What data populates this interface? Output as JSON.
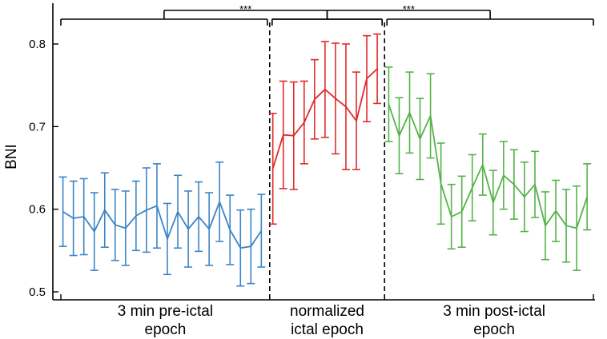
{
  "chart_data": {
    "type": "line",
    "ylabel": "BNI",
    "ylim": [
      0.5,
      0.85
    ],
    "yticks": [
      0.5,
      0.6,
      0.7,
      0.8
    ],
    "ytick_labels": [
      "0.5",
      "0.6",
      "0.7",
      "0.8"
    ],
    "x_range": [
      0,
      51
    ],
    "boundaries": [
      20,
      31
    ],
    "epoch_labels": [
      {
        "line1": "3 min pre-ictal",
        "line2": "epoch",
        "center_x": 10
      },
      {
        "line1": "normalized",
        "line2": "ictal epoch",
        "center_x": 25.5
      },
      {
        "line1": "3 min post-ictal",
        "line2": "epoch",
        "center_x": 41.5
      }
    ],
    "significance": [
      {
        "label": "***",
        "left": [
          0,
          20
        ],
        "right": [
          20,
          31
        ]
      },
      {
        "label": "***",
        "left": [
          20,
          31
        ],
        "right": [
          31,
          51
        ]
      }
    ],
    "series": [
      {
        "name": "pre-ictal",
        "color": "#3d85c6",
        "x": [
          0.2,
          1.2,
          2.2,
          3.2,
          4.2,
          5.2,
          6.2,
          7.2,
          8.2,
          9.2,
          10.2,
          11.2,
          12.2,
          13.2,
          14.2,
          15.2,
          16.2,
          17.2,
          18.2,
          19.2
        ],
        "y": [
          0.597,
          0.589,
          0.591,
          0.573,
          0.599,
          0.581,
          0.577,
          0.592,
          0.599,
          0.604,
          0.564,
          0.597,
          0.576,
          0.591,
          0.576,
          0.609,
          0.575,
          0.553,
          0.555,
          0.574
        ],
        "err": [
          0.042,
          0.045,
          0.046,
          0.047,
          0.045,
          0.043,
          0.045,
          0.042,
          0.051,
          0.051,
          0.043,
          0.044,
          0.046,
          0.042,
          0.044,
          0.048,
          0.042,
          0.046,
          0.045,
          0.044
        ]
      },
      {
        "name": "ictal",
        "color": "#e02b2b",
        "x": [
          20.3,
          21.3,
          22.3,
          23.3,
          24.3,
          25.3,
          26.3,
          27.3,
          28.3,
          29.3,
          30.3
        ],
        "y": [
          0.649,
          0.69,
          0.689,
          0.705,
          0.733,
          0.745,
          0.734,
          0.724,
          0.707,
          0.758,
          0.77
        ],
        "err": [
          0.067,
          0.065,
          0.065,
          0.05,
          0.048,
          0.058,
          0.067,
          0.076,
          0.059,
          0.052,
          0.042
        ]
      },
      {
        "name": "post-ictal",
        "color": "#55b249",
        "x": [
          31.4,
          32.4,
          33.4,
          34.4,
          35.4,
          36.4,
          37.4,
          38.4,
          39.4,
          40.4,
          41.4,
          42.4,
          43.4,
          44.4,
          45.4,
          46.4,
          47.4,
          48.4,
          49.4,
          50.4
        ],
        "y": [
          0.727,
          0.689,
          0.717,
          0.685,
          0.713,
          0.631,
          0.591,
          0.597,
          0.626,
          0.654,
          0.608,
          0.641,
          0.63,
          0.615,
          0.63,
          0.58,
          0.598,
          0.58,
          0.577,
          0.615
        ],
        "err": [
          0.045,
          0.046,
          0.049,
          0.049,
          0.051,
          0.049,
          0.039,
          0.043,
          0.04,
          0.037,
          0.039,
          0.041,
          0.042,
          0.042,
          0.04,
          0.041,
          0.037,
          0.044,
          0.051,
          0.04
        ]
      }
    ]
  }
}
